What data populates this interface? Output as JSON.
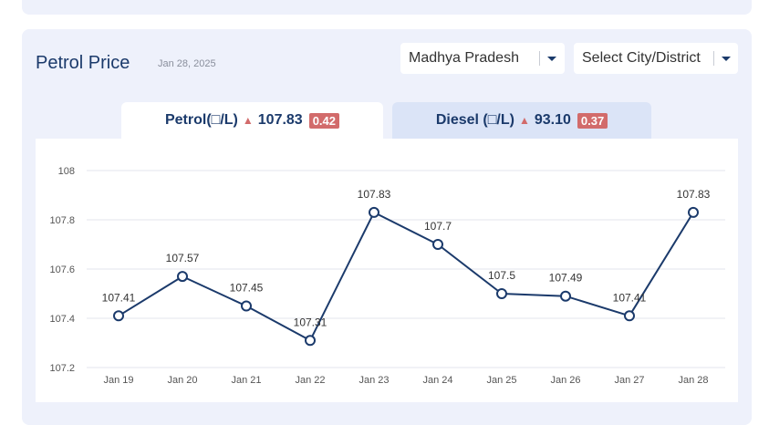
{
  "header": {
    "title": "Petrol Price",
    "date": "Jan 28, 2025"
  },
  "filters": {
    "state": "Madhya Pradesh",
    "city": "Select City/District"
  },
  "tabs": [
    {
      "label": "Petrol(□/L)",
      "price": "107.83",
      "change": "0.42",
      "trend": "up",
      "active": true
    },
    {
      "label": "Diesel (□/L)",
      "price": "93.10",
      "change": "0.37",
      "trend": "up",
      "active": false
    }
  ],
  "colors": {
    "brand_navy": "#1b3a6b",
    "line": "#1b3a6b",
    "increase": "#d26b6b",
    "card_background": "#eef1fb",
    "inactive_tab": "#dbe4f7"
  },
  "chart_data": {
    "type": "line",
    "title": "",
    "xlabel": "",
    "ylabel": "",
    "categories": [
      "Jan 19",
      "Jan 20",
      "Jan 21",
      "Jan 22",
      "Jan 23",
      "Jan 24",
      "Jan 25",
      "Jan 26",
      "Jan 27",
      "Jan 28"
    ],
    "series": [
      {
        "values": [
          107.41,
          107.57,
          107.45,
          107.31,
          107.83,
          107.7,
          107.5,
          107.49,
          107.41,
          107.83
        ],
        "labels": [
          "107.41",
          "107.57",
          "107.45",
          "107.31",
          "107.83",
          "107.7",
          "107.5",
          "107.49",
          "107.41",
          "107.83"
        ]
      }
    ],
    "yticks": [
      107.2,
      107.4,
      107.6,
      107.8,
      108
    ],
    "ytick_labels": [
      "107.2",
      "107.4",
      "107.6",
      "107.8",
      "108"
    ],
    "ylim": [
      107.2,
      108
    ],
    "grid": true,
    "legend": "none"
  }
}
